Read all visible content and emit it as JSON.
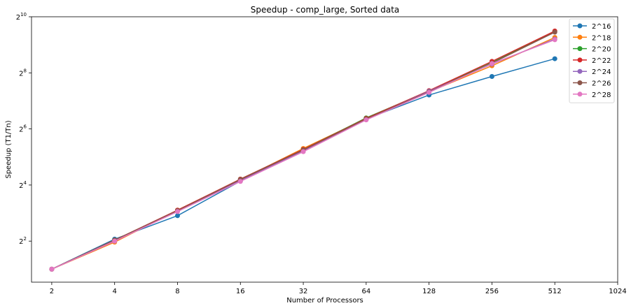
{
  "chart_data": {
    "type": "line",
    "title": "Speedup - comp_large, Sorted data",
    "xlabel": "Number of Processors",
    "ylabel": "Speedup (T1/Tn)",
    "x_scale": "log2",
    "y_scale": "log2",
    "x": [
      2,
      4,
      8,
      16,
      32,
      64,
      128,
      256,
      512
    ],
    "xlim": [
      1.6,
      1024
    ],
    "ylim": [
      1.45,
      1024
    ],
    "x_ticks": [
      "2",
      "4",
      "8",
      "16",
      "32",
      "64",
      "128",
      "256",
      "512",
      "1024"
    ],
    "y_ticks": [
      {
        "base": "2",
        "exp": "2",
        "value": 4
      },
      {
        "base": "2",
        "exp": "4",
        "value": 16
      },
      {
        "base": "2",
        "exp": "6",
        "value": 64
      },
      {
        "base": "2",
        "exp": "8",
        "value": 256
      },
      {
        "base": "2",
        "exp": "10",
        "value": 1024
      }
    ],
    "grid": false,
    "legend": "top-right",
    "series": [
      {
        "name": "2^16",
        "color": "#1f77b4",
        "values": [
          2.0,
          4.2,
          7.5,
          17.6,
          37.5,
          82.0,
          148.0,
          234.0,
          363.0
        ]
      },
      {
        "name": "2^18",
        "color": "#ff7f0e",
        "values": [
          2.0,
          3.9,
          8.6,
          18.2,
          39.5,
          82.5,
          160.0,
          305.0,
          614.0
        ]
      },
      {
        "name": "2^20",
        "color": "#2ca02c",
        "values": [
          2.0,
          4.1,
          8.5,
          18.5,
          38.5,
          84.0,
          163.0,
          330.0,
          715.0
        ]
      },
      {
        "name": "2^22",
        "color": "#d62728",
        "values": [
          2.0,
          4.1,
          8.6,
          18.5,
          38.5,
          83.0,
          165.0,
          340.0,
          720.0
        ]
      },
      {
        "name": "2^24",
        "color": "#9467bd",
        "values": [
          2.0,
          4.0,
          8.4,
          18.0,
          37.0,
          81.0,
          163.0,
          318.0,
          590.0
        ]
      },
      {
        "name": "2^26",
        "color": "#8c564b",
        "values": [
          2.0,
          4.1,
          8.5,
          18.3,
          38.0,
          82.0,
          160.0,
          325.0,
          700.0
        ]
      },
      {
        "name": "2^28",
        "color": "#e377c2",
        "values": [
          2.0,
          4.0,
          8.3,
          17.5,
          36.5,
          80.0,
          158.0,
          322.0,
          580.0
        ]
      }
    ]
  }
}
